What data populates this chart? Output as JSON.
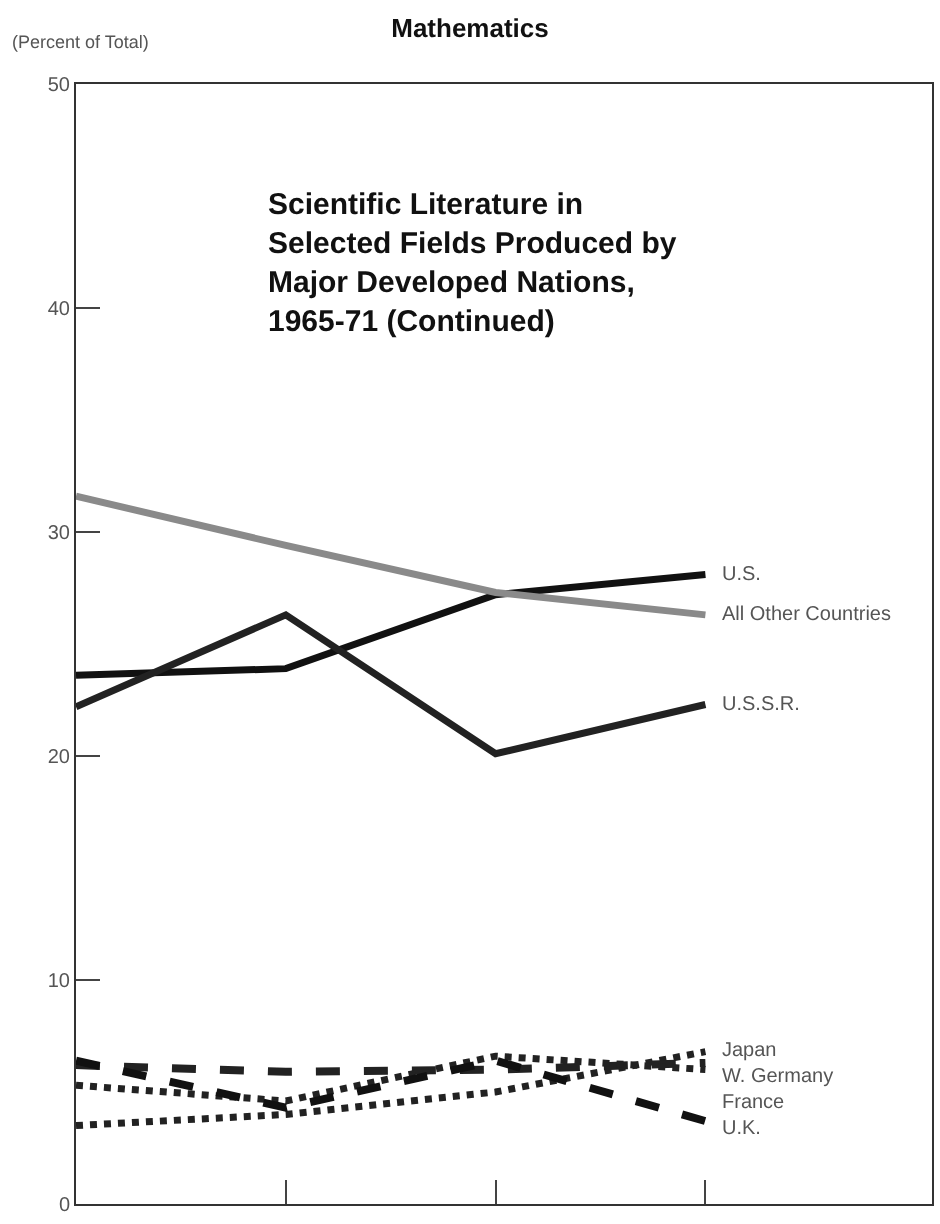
{
  "chart_data": {
    "type": "line",
    "title": "Mathematics",
    "subtitle": "Scientific Literature in\nSelected Fields Produced by\nMajor Developed Nations,\n1965-71 (Continued)",
    "ylabel": "(Percent of Total)",
    "categories": [
      null,
      null,
      null,
      null
    ],
    "series": [
      {
        "name": "U.S.",
        "color": "#111111",
        "line_style": "solid",
        "values": [
          23.6,
          23.9,
          27.2,
          28.1
        ]
      },
      {
        "name": "All Other Countries",
        "color": "#8a8a8a",
        "line_style": "solid",
        "values": [
          31.6,
          29.4,
          27.3,
          26.3
        ]
      },
      {
        "name": "U.S.S.R.",
        "color": "#222222",
        "line_style": "solid",
        "values": [
          22.2,
          26.3,
          20.1,
          22.3
        ]
      },
      {
        "name": "Japan",
        "color": "#222222",
        "line_style": "dotted",
        "values": [
          3.5,
          4.0,
          5.0,
          6.8
        ]
      },
      {
        "name": "W. Germany",
        "color": "#222222",
        "line_style": "dashed",
        "values": [
          6.2,
          5.9,
          6.0,
          6.3
        ]
      },
      {
        "name": "France",
        "color": "#222222",
        "line_style": "dotted",
        "values": [
          5.3,
          4.6,
          6.6,
          6.0
        ]
      },
      {
        "name": "U.K.",
        "color": "#111111",
        "line_style": "dashed",
        "values": [
          6.4,
          4.3,
          6.4,
          3.7
        ]
      }
    ],
    "ylim": [
      0,
      50
    ],
    "yticks": [
      0,
      10,
      20,
      30,
      40,
      50
    ],
    "legend": false,
    "marker": "none",
    "tick_labels": "y"
  }
}
